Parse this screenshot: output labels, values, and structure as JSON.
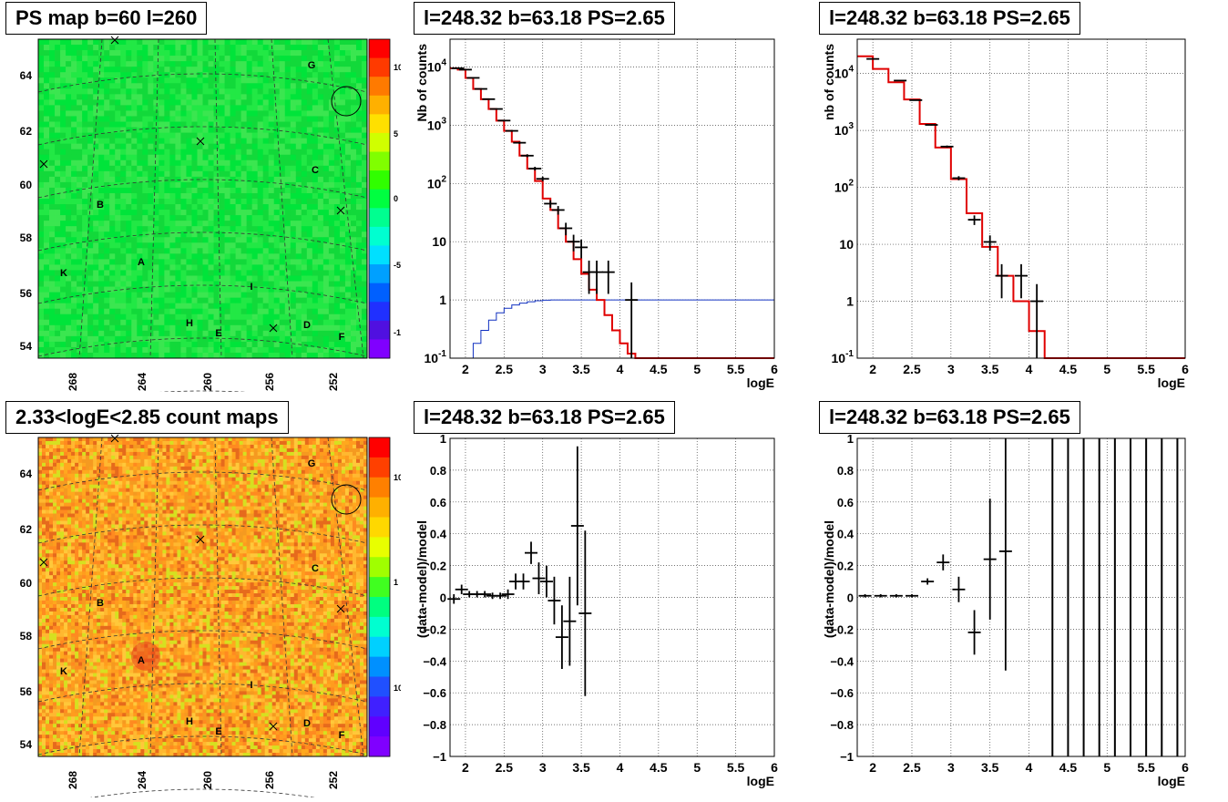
{
  "chart_data": [
    {
      "type": "heatmap",
      "panel": "top-left",
      "title": "PS map b=60 l=260",
      "xticks": [
        "268",
        "264",
        "260",
        "256",
        "252"
      ],
      "yticks": [
        "64",
        "62",
        "60",
        "58",
        "56",
        "54"
      ],
      "colorbar_ticks": [
        "10",
        "5",
        "0",
        "-5",
        "-10"
      ],
      "markers": [
        "G",
        "C",
        "B",
        "A",
        "K",
        "I",
        "H",
        "E",
        "D",
        "F"
      ],
      "palette": [
        "#00e43a",
        "#22e845",
        "#3be650",
        "#12d93a"
      ]
    },
    {
      "type": "line",
      "panel": "top-middle",
      "title": "l=248.32 b=63.18 PS=2.65",
      "xlabel": "logE",
      "ylabel": "Nb of counts",
      "xlim": [
        1.8,
        6
      ],
      "ylim_log": [
        0.1,
        30000
      ],
      "xticks": [
        "2",
        "2.5",
        "3",
        "3.5",
        "4",
        "4.5",
        "5",
        "5.5",
        "6"
      ],
      "yticks": [
        "10^4",
        "10^3",
        "10^2",
        "10",
        "1",
        "10^-1"
      ],
      "data_points": {
        "x": [
          1.9,
          2.0,
          2.1,
          2.2,
          2.3,
          2.4,
          2.5,
          2.6,
          2.7,
          2.8,
          2.9,
          3.0,
          3.1,
          3.2,
          3.3,
          3.4,
          3.5,
          3.6,
          3.7,
          3.85,
          4.15
        ],
        "y": [
          9500,
          9000,
          6500,
          4200,
          2800,
          1900,
          1200,
          800,
          500,
          300,
          180,
          120,
          45,
          35,
          17,
          10,
          8,
          3,
          3,
          3,
          1
        ]
      },
      "model_step": {
        "x": [
          1.8,
          1.9,
          2.0,
          2.1,
          2.2,
          2.3,
          2.4,
          2.5,
          2.6,
          2.7,
          2.8,
          2.9,
          3.0,
          3.1,
          3.2,
          3.3,
          3.4,
          3.5,
          3.6,
          3.7,
          3.8,
          3.9,
          4.0,
          4.1,
          4.2,
          6.0
        ],
        "y": [
          9500,
          9000,
          6500,
          4200,
          2800,
          1900,
          1200,
          800,
          520,
          300,
          180,
          110,
          55,
          35,
          17,
          10,
          5,
          2.8,
          1.5,
          1.0,
          0.55,
          0.3,
          0.18,
          0.12,
          0.1,
          0.1
        ]
      },
      "acceptance": {
        "x": [
          2.0,
          2.1,
          2.2,
          2.3,
          2.4,
          2.5,
          2.6,
          2.7,
          2.8,
          2.9,
          3.0,
          3.1,
          3.2,
          6.0
        ],
        "y": [
          0.1,
          0.18,
          0.3,
          0.45,
          0.6,
          0.72,
          0.82,
          0.88,
          0.93,
          0.97,
          0.99,
          1.0,
          1.0,
          1.0
        ]
      }
    },
    {
      "type": "line",
      "panel": "top-right",
      "title": "l=248.32 b=63.18 PS=2.65",
      "xlabel": "logE",
      "ylabel": "nb of counts",
      "xlim": [
        1.8,
        6
      ],
      "ylim_log": [
        0.1,
        40000
      ],
      "xticks": [
        "2",
        "2.5",
        "3",
        "3.5",
        "4",
        "4.5",
        "5",
        "5.5",
        "6"
      ],
      "yticks": [
        "10^4",
        "10^3",
        "10^2",
        "10",
        "1",
        "10^-1"
      ],
      "data_points": {
        "x": [
          2.0,
          2.35,
          2.55,
          2.75,
          2.95,
          3.1,
          3.3,
          3.5,
          3.65,
          3.9,
          4.1
        ],
        "y": [
          18000,
          7500,
          3400,
          1250,
          520,
          145,
          27,
          11,
          2.8,
          2.8,
          1
        ]
      },
      "model_step": {
        "x": [
          1.8,
          2.0,
          2.2,
          2.4,
          2.6,
          2.8,
          3.0,
          3.2,
          3.4,
          3.6,
          3.8,
          4.0,
          4.2,
          6.0
        ],
        "y": [
          20000,
          12000,
          7000,
          3500,
          1300,
          500,
          140,
          35,
          9,
          2.8,
          1.0,
          0.3,
          0.1,
          0.1
        ]
      }
    },
    {
      "type": "heatmap",
      "panel": "bottom-left",
      "title": "2.33<logE<2.85 count maps",
      "xticks": [
        "268",
        "264",
        "260",
        "256",
        "252"
      ],
      "yticks": [
        "64",
        "62",
        "60",
        "58",
        "56",
        "54"
      ],
      "colorbar_ticks": [
        "10",
        "1",
        "10^-1"
      ],
      "markers": [
        "G",
        "C",
        "B",
        "A",
        "K",
        "I",
        "H",
        "E",
        "D",
        "F"
      ],
      "palette": [
        "#ff9c1e",
        "#ffa81e",
        "#f59a20",
        "#ffb830",
        "#ff8a20",
        "#e66a1c",
        "#d6e020",
        "#ffc83a"
      ]
    },
    {
      "type": "scatter",
      "panel": "bottom-middle",
      "title": "l=248.32 b=63.18 PS=2.65",
      "xlabel": "logE",
      "ylabel": "(data-model)/model",
      "xlim": [
        1.8,
        6
      ],
      "ylim": [
        -1,
        1
      ],
      "xticks": [
        "2",
        "2.5",
        "3",
        "3.5",
        "4",
        "4.5",
        "5",
        "5.5",
        "6"
      ],
      "yticks": [
        "1",
        "0.8",
        "0.6",
        "0.4",
        "0.2",
        "0",
        "-0.2",
        "-0.4",
        "-0.6",
        "-0.8",
        "-1"
      ],
      "x": [
        1.85,
        1.95,
        2.05,
        2.15,
        2.25,
        2.35,
        2.45,
        2.55,
        2.65,
        2.75,
        2.85,
        2.95,
        3.05,
        3.15,
        3.25,
        3.35,
        3.45,
        3.55
      ],
      "y": [
        -0.01,
        0.05,
        0.02,
        0.02,
        0.02,
        0.01,
        0.01,
        0.02,
        0.1,
        0.1,
        0.28,
        0.12,
        0.1,
        -0.02,
        -0.25,
        -0.15,
        0.45,
        -0.1
      ],
      "yerr": [
        0.03,
        0.03,
        0.02,
        0.02,
        0.02,
        0.02,
        0.02,
        0.03,
        0.05,
        0.05,
        0.07,
        0.1,
        0.1,
        0.15,
        0.2,
        0.28,
        0.5,
        0.52
      ]
    },
    {
      "type": "scatter",
      "panel": "bottom-right",
      "title": "l=248.32 b=63.18 PS=2.65",
      "xlabel": "logE",
      "ylabel": "(data-model)/model",
      "xlim": [
        1.8,
        6
      ],
      "ylim": [
        -1,
        1
      ],
      "xticks": [
        "2",
        "2.5",
        "3",
        "3.5",
        "4",
        "4.5",
        "5",
        "5.5",
        "6"
      ],
      "yticks": [
        "1",
        "0.8",
        "0.6",
        "0.4",
        "0.2",
        "0",
        "-0.2",
        "-0.4",
        "-0.6",
        "-0.8",
        "-1"
      ],
      "x": [
        1.9,
        2.1,
        2.3,
        2.5,
        2.7,
        2.9,
        3.1,
        3.3,
        3.5,
        3.7
      ],
      "y": [
        0.01,
        0.01,
        0.01,
        0.01,
        0.1,
        0.22,
        0.05,
        -0.22,
        0.24,
        0.29
      ],
      "yerr": [
        0.01,
        0.01,
        0.01,
        0.01,
        0.02,
        0.05,
        0.08,
        0.14,
        0.38,
        0.75
      ],
      "full_bars_x": [
        4.3,
        4.5,
        4.7,
        4.9,
        5.1,
        5.3,
        5.5,
        5.7,
        5.9
      ]
    }
  ]
}
